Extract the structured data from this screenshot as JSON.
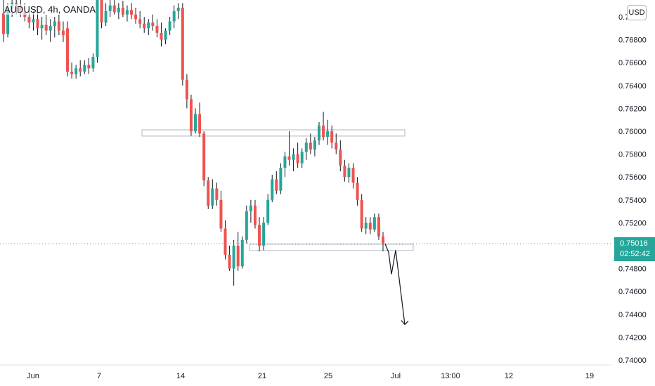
{
  "symbol_line": "AUDUSD, 4h, OANDA",
  "currency": "USD",
  "last_price": "0.75016",
  "countdown": "02:52:42",
  "colors": {
    "up": "#26a69a",
    "down": "#ef5350",
    "wick": "#131722",
    "last_line": "#26a69a"
  },
  "chart_data": {
    "type": "candlestick",
    "x_ticks": [
      "Jun",
      "7",
      "14",
      "21",
      "25",
      "Jul",
      "13:00",
      "12",
      "19"
    ],
    "y_ticks": [
      "0.77000",
      "0.76800",
      "0.76600",
      "0.76400",
      "0.76200",
      "0.76000",
      "0.75800",
      "0.75600",
      "0.75400",
      "0.75200",
      "0.75000",
      "0.74800",
      "0.74600",
      "0.74400",
      "0.74200",
      "0.74000"
    ],
    "ylim": [
      0.7395,
      0.7715
    ],
    "candles": [
      [
        0.7703,
        0.7716,
        0.7678,
        0.7685
      ],
      [
        0.7685,
        0.7712,
        0.7682,
        0.7708
      ],
      [
        0.7708,
        0.7718,
        0.77,
        0.7712
      ],
      [
        0.7712,
        0.7718,
        0.7702,
        0.771
      ],
      [
        0.771,
        0.7716,
        0.77,
        0.7704
      ],
      [
        0.7704,
        0.7712,
        0.7696,
        0.77
      ],
      [
        0.77,
        0.7708,
        0.769,
        0.7695
      ],
      [
        0.7695,
        0.7705,
        0.7688,
        0.7698
      ],
      [
        0.7698,
        0.7706,
        0.7684,
        0.769
      ],
      [
        0.769,
        0.77,
        0.768,
        0.7693
      ],
      [
        0.7693,
        0.7702,
        0.7684,
        0.7688
      ],
      [
        0.7688,
        0.7698,
        0.7678,
        0.7692
      ],
      [
        0.7692,
        0.77,
        0.7682,
        0.7696
      ],
      [
        0.7696,
        0.7702,
        0.7684,
        0.7688
      ],
      [
        0.7688,
        0.7696,
        0.7678,
        0.7684
      ],
      [
        0.769,
        0.7696,
        0.7648,
        0.7652
      ],
      [
        0.7652,
        0.766,
        0.7646,
        0.765
      ],
      [
        0.765,
        0.7658,
        0.7646,
        0.7655
      ],
      [
        0.7655,
        0.7662,
        0.7648,
        0.7652
      ],
      [
        0.7652,
        0.7662,
        0.765,
        0.7658
      ],
      [
        0.7658,
        0.7664,
        0.765,
        0.7655
      ],
      [
        0.7655,
        0.7668,
        0.7652,
        0.7665
      ],
      [
        0.7665,
        0.774,
        0.766,
        0.773
      ],
      [
        0.7722,
        0.7732,
        0.769,
        0.7695
      ],
      [
        0.7695,
        0.7712,
        0.7692,
        0.7705
      ],
      [
        0.7705,
        0.772,
        0.77,
        0.771
      ],
      [
        0.771,
        0.7716,
        0.7702,
        0.7704
      ],
      [
        0.7704,
        0.7712,
        0.7698,
        0.7708
      ],
      [
        0.7708,
        0.7714,
        0.77,
        0.7702
      ],
      [
        0.7702,
        0.771,
        0.7696,
        0.7706
      ],
      [
        0.7706,
        0.7712,
        0.7698,
        0.7702
      ],
      [
        0.7702,
        0.7708,
        0.7694,
        0.7698
      ],
      [
        0.7698,
        0.7705,
        0.769,
        0.7694
      ],
      [
        0.7694,
        0.77,
        0.7686,
        0.769
      ],
      [
        0.769,
        0.7698,
        0.7684,
        0.7695
      ],
      [
        0.7695,
        0.7702,
        0.7688,
        0.7692
      ],
      [
        0.7692,
        0.7698,
        0.7682,
        0.7686
      ],
      [
        0.7686,
        0.7695,
        0.7674,
        0.768
      ],
      [
        0.768,
        0.769,
        0.7676,
        0.7688
      ],
      [
        0.7688,
        0.77,
        0.7684,
        0.7696
      ],
      [
        0.7696,
        0.771,
        0.769,
        0.7705
      ],
      [
        0.7705,
        0.7712,
        0.7698,
        0.7708
      ],
      [
        0.7708,
        0.7712,
        0.764,
        0.7645
      ],
      [
        0.7645,
        0.765,
        0.762,
        0.7628
      ],
      [
        0.7628,
        0.7632,
        0.7596,
        0.76
      ],
      [
        0.76,
        0.762,
        0.7598,
        0.7615
      ],
      [
        0.7615,
        0.7625,
        0.7595,
        0.7598
      ],
      [
        0.7598,
        0.76,
        0.7552,
        0.7557
      ],
      [
        0.7557,
        0.756,
        0.7532,
        0.7535
      ],
      [
        0.7535,
        0.7558,
        0.7532,
        0.755
      ],
      [
        0.755,
        0.7555,
        0.7535,
        0.754
      ],
      [
        0.754,
        0.7548,
        0.7512,
        0.7515
      ],
      [
        0.7515,
        0.7522,
        0.7488,
        0.7492
      ],
      [
        0.7492,
        0.75,
        0.7478,
        0.748
      ],
      [
        0.748,
        0.7505,
        0.7465,
        0.75
      ],
      [
        0.75,
        0.7512,
        0.7478,
        0.7482
      ],
      [
        0.7482,
        0.7508,
        0.748,
        0.7505
      ],
      [
        0.7505,
        0.7535,
        0.7502,
        0.753
      ],
      [
        0.753,
        0.754,
        0.752,
        0.7535
      ],
      [
        0.7535,
        0.754,
        0.7515,
        0.7518
      ],
      [
        0.7518,
        0.7525,
        0.7495,
        0.75
      ],
      [
        0.75,
        0.7525,
        0.7496,
        0.752
      ],
      [
        0.752,
        0.7545,
        0.7518,
        0.754
      ],
      [
        0.754,
        0.7562,
        0.7538,
        0.7558
      ],
      [
        0.7558,
        0.7565,
        0.7545,
        0.7548
      ],
      [
        0.7548,
        0.7572,
        0.7545,
        0.7568
      ],
      [
        0.7568,
        0.7582,
        0.756,
        0.7578
      ],
      [
        0.7578,
        0.76,
        0.757,
        0.7575
      ],
      [
        0.7575,
        0.7585,
        0.7565,
        0.758
      ],
      [
        0.758,
        0.759,
        0.7568,
        0.7572
      ],
      [
        0.7572,
        0.7585,
        0.7568,
        0.7582
      ],
      [
        0.7582,
        0.7594,
        0.7575,
        0.759
      ],
      [
        0.759,
        0.7598,
        0.758,
        0.7584
      ],
      [
        0.7584,
        0.7595,
        0.7578,
        0.7592
      ],
      [
        0.7592,
        0.7608,
        0.7588,
        0.7605
      ],
      [
        0.7605,
        0.7617,
        0.7592,
        0.7595
      ],
      [
        0.7595,
        0.761,
        0.7588,
        0.76
      ],
      [
        0.76,
        0.7605,
        0.7585,
        0.759
      ],
      [
        0.759,
        0.7598,
        0.758,
        0.7584
      ],
      [
        0.7584,
        0.7592,
        0.7565,
        0.757
      ],
      [
        0.757,
        0.7575,
        0.7556,
        0.756
      ],
      [
        0.756,
        0.7572,
        0.7555,
        0.7568
      ],
      [
        0.7568,
        0.7572,
        0.755,
        0.7555
      ],
      [
        0.7555,
        0.756,
        0.7535,
        0.754
      ],
      [
        0.754,
        0.7545,
        0.7512,
        0.7515
      ],
      [
        0.7515,
        0.7525,
        0.751,
        0.752
      ],
      [
        0.752,
        0.7525,
        0.751,
        0.7514
      ],
      [
        0.7514,
        0.7528,
        0.7512,
        0.7525
      ],
      [
        0.7525,
        0.7528,
        0.7505,
        0.7508
      ],
      [
        0.7508,
        0.7512,
        0.7495,
        0.7502
      ]
    ],
    "zones": [
      {
        "y_low": 0.7597,
        "y_high": 0.76,
        "x_start": 0.773,
        "x_end": 0.7745
      },
      {
        "y_low": 0.7497,
        "y_high": 0.75,
        "x_start": 0.773,
        "x_end": 0.7745
      }
    ],
    "projection": [
      0.75016,
      0.7494,
      0.7475,
      0.7496,
      0.7431
    ],
    "last_price_value": 0.75016
  }
}
